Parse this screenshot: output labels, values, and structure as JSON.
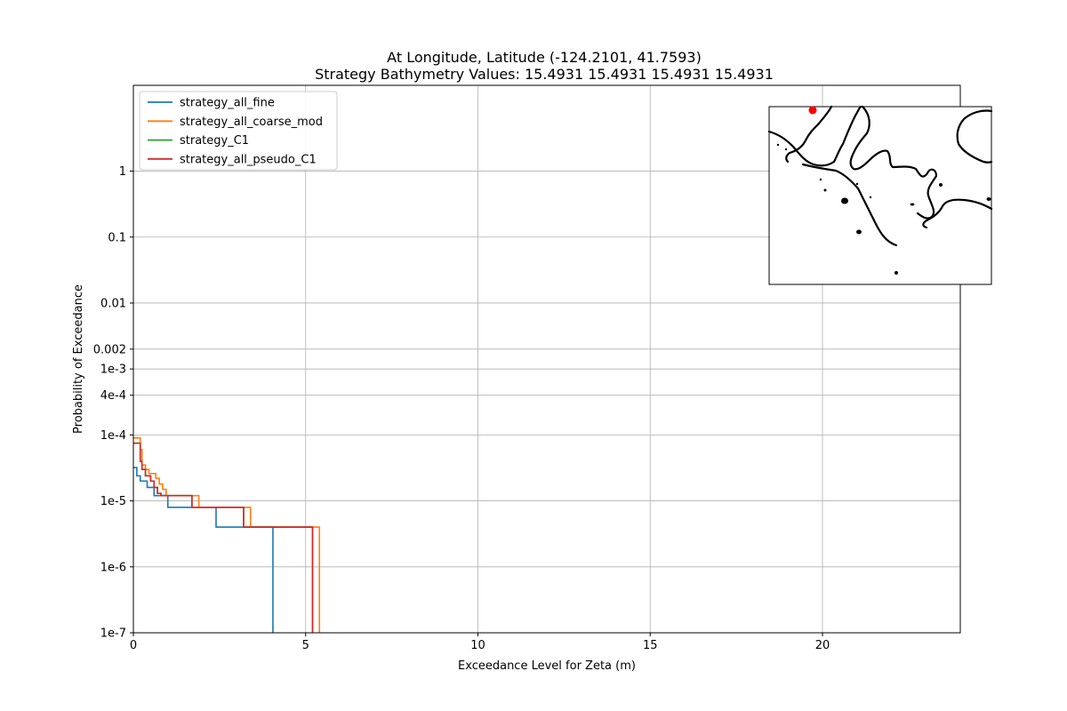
{
  "chart_data": {
    "type": "line",
    "title": "At Longitude, Latitude (-124.2101,  41.7593)",
    "subtitle": "Strategy Bathymetry Values:   15.4931   15.4931   15.4931   15.4931",
    "xlabel": "Exceedance Level for Zeta (m)",
    "ylabel": "Probability of Exceedance",
    "xlim": [
      0,
      24
    ],
    "ylim": [
      1e-07,
      20
    ],
    "yscale": "log",
    "grid": true,
    "legend_position": "top-left",
    "xticks": [
      {
        "value": 0,
        "label": "0"
      },
      {
        "value": 5,
        "label": "5"
      },
      {
        "value": 10,
        "label": "10"
      },
      {
        "value": 15,
        "label": "15"
      },
      {
        "value": 20,
        "label": "20"
      }
    ],
    "yticks": [
      {
        "value": 1e-07,
        "label": "1e-7"
      },
      {
        "value": 1e-06,
        "label": "1e-6"
      },
      {
        "value": 1e-05,
        "label": "1e-5"
      },
      {
        "value": 0.0001,
        "label": "1e-4"
      },
      {
        "value": 0.0004,
        "label": "4e-4"
      },
      {
        "value": 0.001,
        "label": "1e-3"
      },
      {
        "value": 0.002,
        "label": "0.002"
      },
      {
        "value": 0.01,
        "label": "0.01"
      },
      {
        "value": 0.1,
        "label": "0.1"
      },
      {
        "value": 1,
        "label": "1"
      }
    ],
    "series": [
      {
        "name": "strategy_all_fine",
        "color": "#1f77b4",
        "x": [
          0,
          0.1,
          0.1,
          0.2,
          0.2,
          0.4,
          0.4,
          0.6,
          0.6,
          1.0,
          1.0,
          2.4,
          2.4,
          4.05,
          4.05
        ],
        "y": [
          3.2e-05,
          3.2e-05,
          2.4e-05,
          2.4e-05,
          2e-05,
          2e-05,
          1.6e-05,
          1.6e-05,
          1.2e-05,
          1.2e-05,
          8e-06,
          8e-06,
          4e-06,
          4e-06,
          1e-07
        ]
      },
      {
        "name": "strategy_all_coarse_mod",
        "color": "#ff7f0e",
        "x": [
          0,
          0.2,
          0.2,
          0.25,
          0.25,
          0.35,
          0.35,
          0.45,
          0.45,
          0.65,
          0.65,
          0.75,
          0.75,
          0.85,
          0.85,
          0.95,
          0.95,
          1.9,
          1.9,
          3.4,
          3.4,
          5.4,
          5.4
        ],
        "y": [
          9e-05,
          9e-05,
          6e-05,
          6e-05,
          3.5e-05,
          3.5e-05,
          3e-05,
          3e-05,
          2.6e-05,
          2.6e-05,
          2.2e-05,
          2.2e-05,
          1.8e-05,
          1.8e-05,
          1.5e-05,
          1.5e-05,
          1.2e-05,
          1.2e-05,
          8e-06,
          8e-06,
          4e-06,
          4e-06,
          1e-07
        ]
      },
      {
        "name": "strategy_C1",
        "color": "#2ca02c",
        "x": [
          0,
          0.2,
          0.2,
          0.25,
          0.25,
          0.35,
          0.35,
          0.5,
          0.5,
          0.6,
          0.6,
          0.7,
          0.7,
          0.8,
          0.8,
          1.7,
          1.7,
          3.2,
          3.2,
          5.2,
          5.2
        ],
        "y": [
          7.5e-05,
          7.5e-05,
          4e-05,
          4e-05,
          3e-05,
          3e-05,
          2.4e-05,
          2.4e-05,
          2e-05,
          2e-05,
          1.6e-05,
          1.6e-05,
          1.3e-05,
          1.3e-05,
          1.2e-05,
          1.2e-05,
          8e-06,
          8e-06,
          4e-06,
          4e-06,
          1e-07
        ]
      },
      {
        "name": "strategy_all_pseudo_C1",
        "color": "#d62728",
        "x": [
          0,
          0.2,
          0.2,
          0.25,
          0.25,
          0.35,
          0.35,
          0.5,
          0.5,
          0.6,
          0.6,
          0.7,
          0.7,
          0.8,
          0.8,
          1.7,
          1.7,
          3.2,
          3.2,
          5.2,
          5.2
        ],
        "y": [
          7.5e-05,
          7.5e-05,
          4e-05,
          4e-05,
          3e-05,
          3e-05,
          2.4e-05,
          2.4e-05,
          2e-05,
          2e-05,
          1.6e-05,
          1.6e-05,
          1.3e-05,
          1.3e-05,
          1.2e-05,
          1.2e-05,
          8e-06,
          8e-06,
          4e-06,
          4e-06,
          1e-07
        ]
      }
    ],
    "inset_map": {
      "location_marker_color": "#ff0000"
    }
  }
}
